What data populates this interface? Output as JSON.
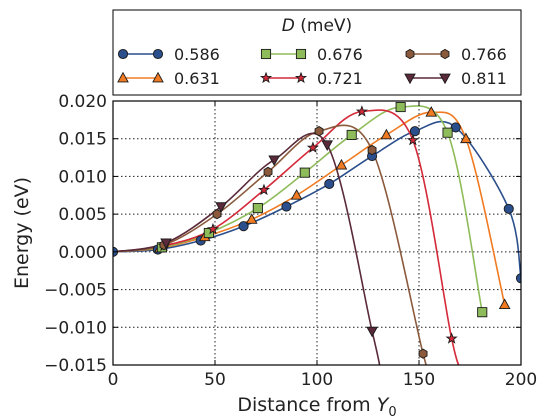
{
  "chart_data": {
    "type": "line",
    "xlabel": "Distance from",
    "xlabel_symbol": "Y",
    "xlabel_subscript": "0",
    "ylabel": "Energy (eV)",
    "xlim": [
      0,
      200
    ],
    "ylim": [
      -0.015,
      0.02
    ],
    "xticks": [
      0,
      50,
      100,
      150,
      200
    ],
    "xtick_labels": [
      "0",
      "50",
      "100",
      "150",
      "200"
    ],
    "yticks": [
      -0.015,
      -0.01,
      -0.005,
      0.0,
      0.005,
      0.01,
      0.015,
      0.02
    ],
    "ytick_labels": [
      "−0.015",
      "−0.010",
      "−0.005",
      "0.000",
      "0.005",
      "0.010",
      "0.015",
      "0.020"
    ],
    "grid": true,
    "legend": {
      "placement": "top",
      "title_symbol": "D",
      "title_unit": "(meV)",
      "columns": 3
    },
    "series": [
      {
        "name": "0.586",
        "color": "#2b4f8c",
        "marker": "circle",
        "x": [
          0,
          22,
          43,
          64,
          85,
          106,
          127,
          148,
          168,
          194,
          200
        ],
        "y": [
          0.0,
          0.0003,
          0.0015,
          0.0034,
          0.006,
          0.009,
          0.0127,
          0.016,
          0.0165,
          0.0057,
          -0.0035
        ]
      },
      {
        "name": "0.631",
        "color": "#f07b22",
        "marker": "triangle-up",
        "x": [
          0,
          23,
          45,
          68,
          90,
          112,
          134,
          156,
          173,
          192
        ],
        "y": [
          0.0,
          0.0005,
          0.002,
          0.0043,
          0.0075,
          0.0115,
          0.0155,
          0.0185,
          0.015,
          -0.007
        ]
      },
      {
        "name": "0.676",
        "color": "#8fbc5a",
        "marker": "square",
        "x": [
          0,
          24,
          47,
          71,
          94,
          117,
          141,
          164,
          181
        ],
        "y": [
          0.0,
          0.0006,
          0.0025,
          0.0058,
          0.0105,
          0.0155,
          0.0192,
          0.0158,
          -0.008
        ]
      },
      {
        "name": "0.721",
        "color": "#d42a3a",
        "marker": "star",
        "x": [
          0,
          25,
          49,
          74,
          98,
          122,
          147,
          166,
          171
        ],
        "y": [
          0.0,
          0.0008,
          0.003,
          0.0082,
          0.0138,
          0.0186,
          0.0148,
          -0.0115,
          -0.0155
        ]
      },
      {
        "name": "0.766",
        "color": "#8b5a3c",
        "marker": "hexagon",
        "x": [
          0,
          25,
          51,
          76,
          101,
          127,
          152,
          155
        ],
        "y": [
          0.0,
          0.0009,
          0.005,
          0.0106,
          0.016,
          0.0135,
          -0.0135,
          -0.0155
        ]
      },
      {
        "name": "0.811",
        "color": "#5a2a3a",
        "marker": "triangle-down",
        "x": [
          0,
          26,
          53,
          79,
          105,
          127,
          131
        ],
        "y": [
          0.0,
          0.0012,
          0.006,
          0.0122,
          0.0142,
          -0.0105,
          -0.0155
        ]
      }
    ]
  }
}
